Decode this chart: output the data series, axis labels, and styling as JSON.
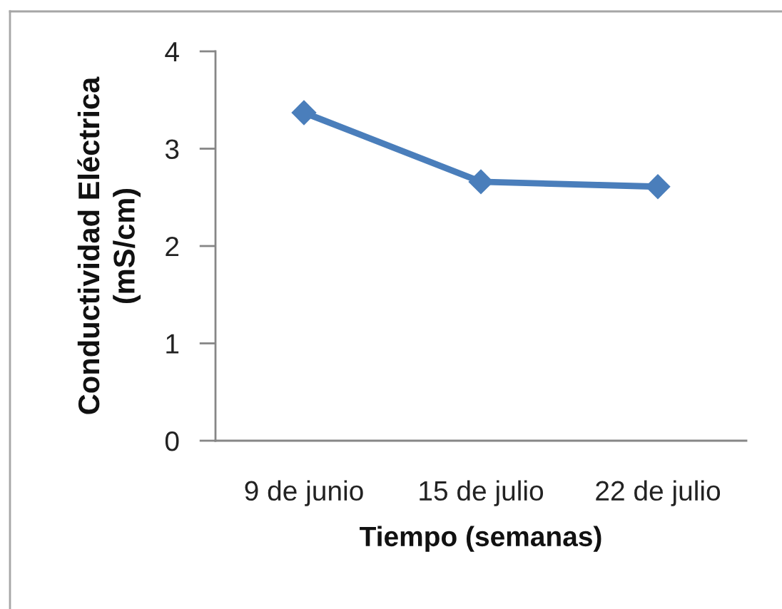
{
  "chart_data": {
    "type": "line",
    "xlabel": "Tiempo (semanas)",
    "ylabel": "Conductividad Eléctrica\n(mS/cm)",
    "categories": [
      "9 de junio",
      "15 de julio",
      "22 de julio"
    ],
    "series": [
      {
        "color": "#4a7ebb",
        "values": [
          3.37,
          2.66,
          2.61
        ]
      }
    ],
    "ylim": [
      0,
      4
    ],
    "yticks": [
      0,
      1,
      2,
      3,
      4
    ],
    "marker": "diamond",
    "line_style": "solid"
  }
}
